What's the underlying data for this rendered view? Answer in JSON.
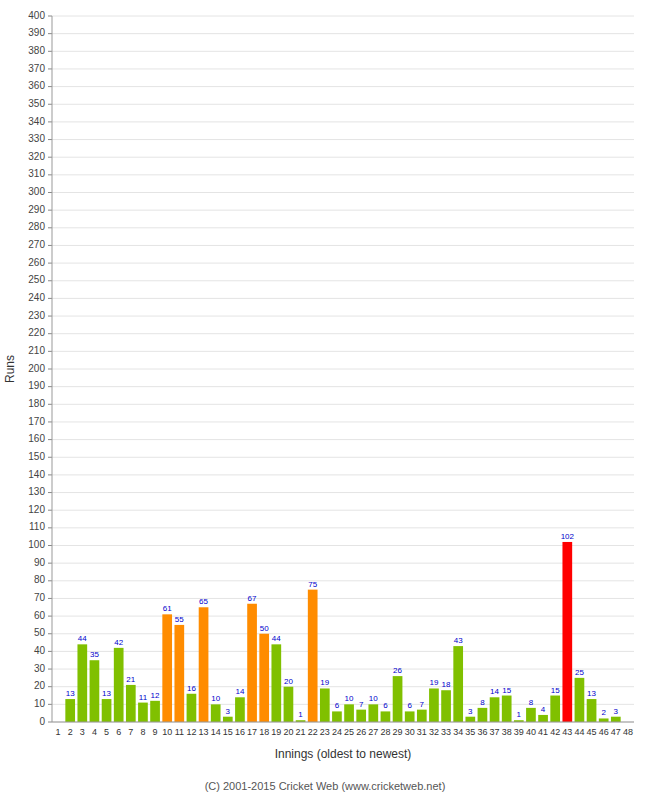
{
  "chart_data": {
    "type": "bar",
    "xlabel": "Innings (oldest to newest)",
    "ylabel": "Runs",
    "categories": [
      "1",
      "2",
      "3",
      "4",
      "5",
      "6",
      "7",
      "8",
      "9",
      "10",
      "11",
      "12",
      "13",
      "14",
      "15",
      "16",
      "17",
      "18",
      "19",
      "20",
      "21",
      "22",
      "23",
      "24",
      "25",
      "26",
      "27",
      "28",
      "29",
      "30",
      "31",
      "32",
      "33",
      "34",
      "35",
      "36",
      "37",
      "38",
      "39",
      "40",
      "41",
      "42",
      "43",
      "44",
      "45",
      "46",
      "47",
      "48"
    ],
    "values": [
      0,
      13,
      44,
      35,
      13,
      42,
      21,
      11,
      12,
      61,
      55,
      16,
      65,
      10,
      3,
      14,
      67,
      50,
      44,
      20,
      1,
      75,
      19,
      6,
      10,
      7,
      10,
      6,
      26,
      6,
      7,
      19,
      18,
      43,
      3,
      8,
      14,
      15,
      1,
      8,
      4,
      15,
      102,
      25,
      13,
      2,
      3,
      0
    ],
    "colors": [
      "#80c000",
      "#80c000",
      "#80c000",
      "#80c000",
      "#80c000",
      "#80c000",
      "#80c000",
      "#80c000",
      "#80c000",
      "#ff8c00",
      "#ff8c00",
      "#80c000",
      "#ff8c00",
      "#80c000",
      "#80c000",
      "#80c000",
      "#ff8c00",
      "#ff8c00",
      "#80c000",
      "#80c000",
      "#80c000",
      "#ff8c00",
      "#80c000",
      "#80c000",
      "#80c000",
      "#80c000",
      "#80c000",
      "#80c000",
      "#80c000",
      "#80c000",
      "#80c000",
      "#80c000",
      "#80c000",
      "#80c000",
      "#80c000",
      "#80c000",
      "#80c000",
      "#80c000",
      "#80c000",
      "#80c000",
      "#80c000",
      "#80c000",
      "#ff0000",
      "#80c000",
      "#80c000",
      "#80c000",
      "#80c000",
      "#80c000"
    ],
    "ylim": [
      0,
      400
    ],
    "yticks": [
      0,
      10,
      20,
      30,
      40,
      50,
      60,
      70,
      80,
      90,
      100,
      110,
      120,
      130,
      140,
      150,
      160,
      170,
      180,
      190,
      200,
      210,
      220,
      230,
      240,
      250,
      260,
      270,
      280,
      290,
      300,
      310,
      320,
      330,
      340,
      350,
      360,
      370,
      380,
      390,
      400
    ],
    "grid": true,
    "data_labels": true,
    "annotations": [
      "(C) 2001-2015 Cricket Web (www.cricketweb.net)"
    ]
  }
}
